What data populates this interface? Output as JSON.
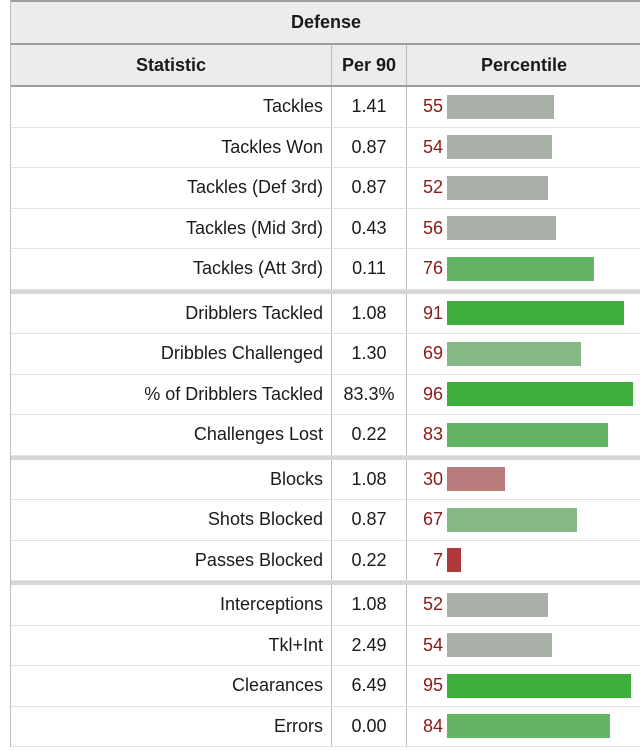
{
  "title": "Defense",
  "headers": {
    "statistic": "Statistic",
    "per90": "Per 90",
    "percentile": "Percentile"
  },
  "colors": {
    "gray": "#a8b0a8",
    "light_green": "#86b886",
    "mid_green": "#63b563",
    "green": "#3eaf3e",
    "red_light": "#b87a7a",
    "red": "#b03a3a"
  },
  "groups": [
    {
      "rows": [
        {
          "stat": "Tackles",
          "per90": "1.41",
          "pct": "55",
          "pct_value": 55,
          "color": "#a8b0a8"
        },
        {
          "stat": "Tackles Won",
          "per90": "0.87",
          "pct": "54",
          "pct_value": 54,
          "color": "#a8b0a8"
        },
        {
          "stat": "Tackles (Def 3rd)",
          "per90": "0.87",
          "pct": "52",
          "pct_value": 52,
          "color": "#a8b0a8"
        },
        {
          "stat": "Tackles (Mid 3rd)",
          "per90": "0.43",
          "pct": "56",
          "pct_value": 56,
          "color": "#a8b0a8"
        },
        {
          "stat": "Tackles (Att 3rd)",
          "per90": "0.11",
          "pct": "76",
          "pct_value": 76,
          "color": "#63b563"
        }
      ]
    },
    {
      "rows": [
        {
          "stat": "Dribblers Tackled",
          "per90": "1.08",
          "pct": "91",
          "pct_value": 91,
          "color": "#3eaf3e"
        },
        {
          "stat": "Dribbles Challenged",
          "per90": "1.30",
          "pct": "69",
          "pct_value": 69,
          "color": "#86b886"
        },
        {
          "stat": "% of Dribblers Tackled",
          "per90": "83.3%",
          "pct": "96",
          "pct_value": 96,
          "color": "#3eaf3e"
        },
        {
          "stat": "Challenges Lost",
          "per90": "0.22",
          "pct": "83",
          "pct_value": 83,
          "color": "#63b563"
        }
      ]
    },
    {
      "rows": [
        {
          "stat": "Blocks",
          "per90": "1.08",
          "pct": "30",
          "pct_value": 30,
          "color": "#b87a7a"
        },
        {
          "stat": "Shots Blocked",
          "per90": "0.87",
          "pct": "67",
          "pct_value": 67,
          "color": "#86b886"
        },
        {
          "stat": "Passes Blocked",
          "per90": "0.22",
          "pct": "7",
          "pct_value": 7,
          "color": "#b03a3a"
        }
      ]
    },
    {
      "rows": [
        {
          "stat": "Interceptions",
          "per90": "1.08",
          "pct": "52",
          "pct_value": 52,
          "color": "#a8b0a8"
        },
        {
          "stat": "Tkl+Int",
          "per90": "2.49",
          "pct": "54",
          "pct_value": 54,
          "color": "#a8b0a8"
        },
        {
          "stat": "Clearances",
          "per90": "6.49",
          "pct": "95",
          "pct_value": 95,
          "color": "#3eaf3e"
        },
        {
          "stat": "Errors",
          "per90": "0.00",
          "pct": "84",
          "pct_value": 84,
          "color": "#63b563"
        }
      ]
    }
  ]
}
